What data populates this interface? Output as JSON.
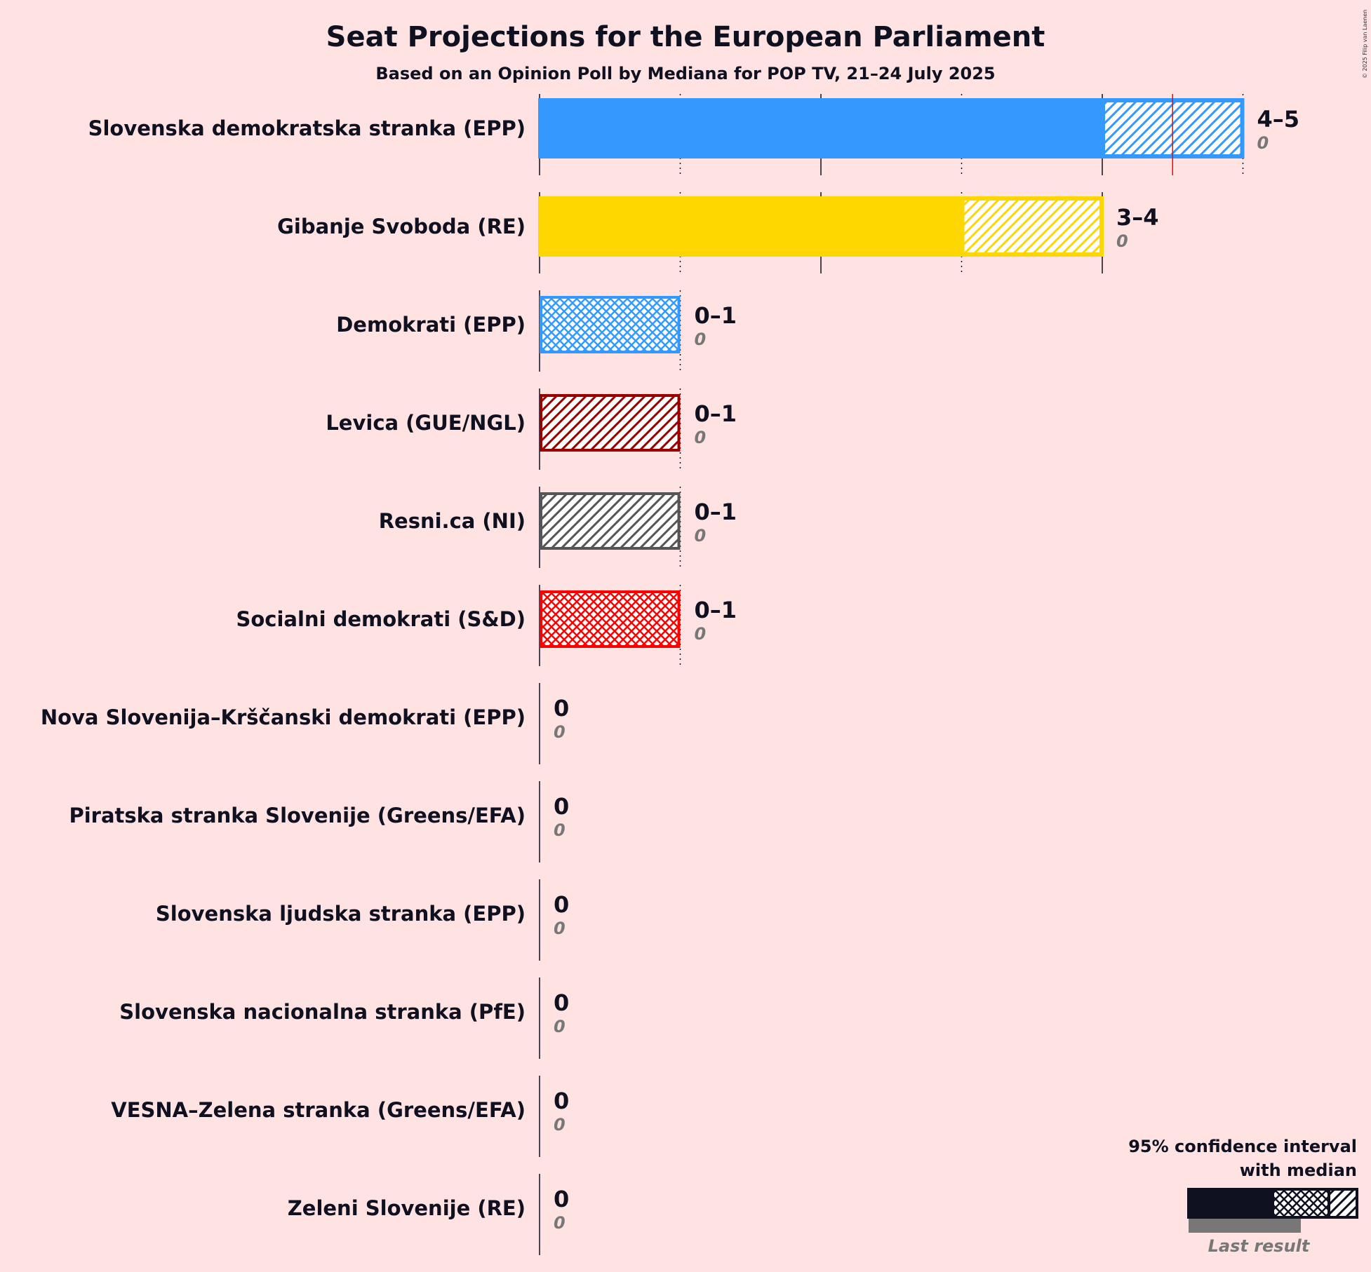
{
  "chart_data": {
    "type": "bar",
    "title": "Seat Projections for the European Parliament",
    "subtitle": "Based on an Opinion Poll by Mediana for POP TV, 21–24 July 2025",
    "copyright": "© 2025 Filip van Laenen",
    "xlim": [
      0,
      5
    ],
    "majority_marker": 4.5,
    "parties": [
      {
        "name": "Slovenska demokratska stranka (EPP)",
        "low": 4,
        "median": 4,
        "high": 5,
        "range_label": "4–5",
        "last_result": 0,
        "last_label": "0",
        "color": "#3399FF",
        "style": "solid"
      },
      {
        "name": "Gibanje Svoboda (RE)",
        "low": 3,
        "median": 3,
        "high": 4,
        "range_label": "3–4",
        "last_result": 0,
        "last_label": "0",
        "color": "#FFD700",
        "style": "solid"
      },
      {
        "name": "Demokrati (EPP)",
        "low": 0,
        "median": 0,
        "high": 1,
        "range_label": "0–1",
        "last_result": 0,
        "last_label": "0",
        "color": "#3399FF",
        "style": "crosshatch"
      },
      {
        "name": "Levica (GUE/NGL)",
        "low": 0,
        "median": 0,
        "high": 1,
        "range_label": "0–1",
        "last_result": 0,
        "last_label": "0",
        "color": "#990000",
        "style": "hatch"
      },
      {
        "name": "Resni.ca (NI)",
        "low": 0,
        "median": 0,
        "high": 1,
        "range_label": "0–1",
        "last_result": 0,
        "last_label": "0",
        "color": "#555555",
        "style": "hatch"
      },
      {
        "name": "Socialni demokrati (S&D)",
        "low": 0,
        "median": 0,
        "high": 1,
        "range_label": "0–1",
        "last_result": 0,
        "last_label": "0",
        "color": "#FF0000",
        "style": "crosshatch"
      },
      {
        "name": "Nova Slovenija–Krščanski demokrati (EPP)",
        "low": 0,
        "median": 0,
        "high": 0,
        "range_label": "0",
        "last_result": 0,
        "last_label": "0",
        "color": "#3399FF",
        "style": "none"
      },
      {
        "name": "Piratska stranka Slovenije (Greens/EFA)",
        "low": 0,
        "median": 0,
        "high": 0,
        "range_label": "0",
        "last_result": 0,
        "last_label": "0",
        "color": "#000000",
        "style": "none"
      },
      {
        "name": "Slovenska ljudska stranka (EPP)",
        "low": 0,
        "median": 0,
        "high": 0,
        "range_label": "0",
        "last_result": 0,
        "last_label": "0",
        "color": "#3399FF",
        "style": "none"
      },
      {
        "name": "Slovenska nacionalna stranka (PfE)",
        "low": 0,
        "median": 0,
        "high": 0,
        "range_label": "0",
        "last_result": 0,
        "last_label": "0",
        "color": "#000000",
        "style": "none"
      },
      {
        "name": "VESNA–Zelena stranka (Greens/EFA)",
        "low": 0,
        "median": 0,
        "high": 0,
        "range_label": "0",
        "last_result": 0,
        "last_label": "0",
        "color": "#000000",
        "style": "none"
      },
      {
        "name": "Zeleni Slovenije (RE)",
        "low": 0,
        "median": 0,
        "high": 0,
        "range_label": "0",
        "last_result": 0,
        "last_label": "0",
        "color": "#000000",
        "style": "none"
      }
    ],
    "legend": {
      "line1": "95% confidence interval",
      "line2": "with median",
      "last_result_label": "Last result",
      "placement": "bottom-right"
    }
  }
}
